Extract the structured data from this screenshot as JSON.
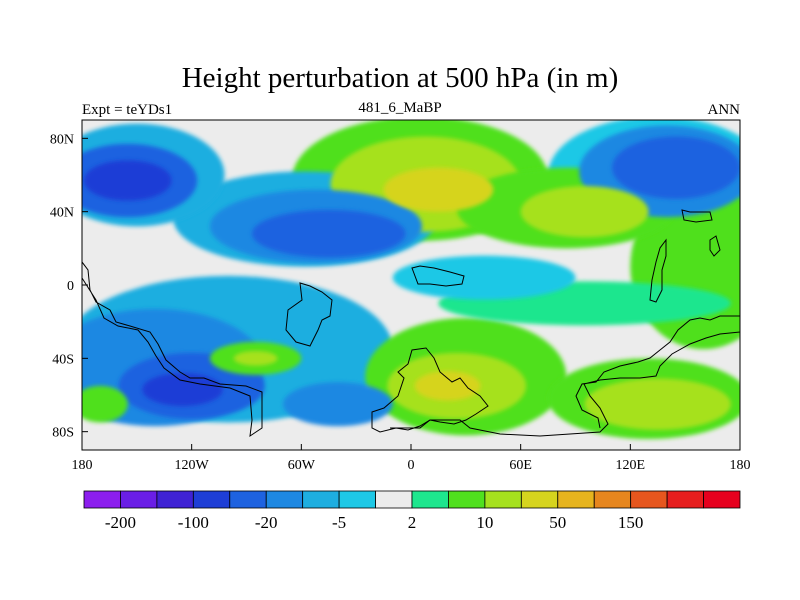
{
  "chart_data": {
    "type": "heatmap",
    "title": "Height perturbation at 500 hPa (in m)",
    "left_string": "Expt = teYDs1",
    "center_string": "481_6_MaBP",
    "right_string": "ANN",
    "xlim": [
      -180,
      180
    ],
    "ylim": [
      -90,
      90
    ],
    "x_ticks": [
      {
        "value": -180,
        "label": "180"
      },
      {
        "value": -120,
        "label": "120W"
      },
      {
        "value": -60,
        "label": "60W"
      },
      {
        "value": 0,
        "label": "0"
      },
      {
        "value": 60,
        "label": "60E"
      },
      {
        "value": 120,
        "label": "120E"
      },
      {
        "value": 180,
        "label": "180"
      }
    ],
    "y_ticks": [
      {
        "value": 80,
        "label": "80N"
      },
      {
        "value": 40,
        "label": "40N"
      },
      {
        "value": 0,
        "label": "0"
      },
      {
        "value": -40,
        "label": "40S"
      },
      {
        "value": -80,
        "label": "80S"
      }
    ],
    "colorbar": {
      "colors": [
        "#8c1eee",
        "#6a1ee6",
        "#3f22d4",
        "#1e3ed6",
        "#1e62e0",
        "#1e88e2",
        "#1eaee0",
        "#1ec8e6",
        "#ececec",
        "#1ee68e",
        "#50e01e",
        "#a6e11e",
        "#d6d41e",
        "#e6b41e",
        "#e6861e",
        "#e6561e",
        "#e61e1e",
        "#e6001e"
      ],
      "labels": [
        {
          "boundary": 1,
          "text": "-200"
        },
        {
          "boundary": 3,
          "text": "-100"
        },
        {
          "boundary": 5,
          "text": "-20"
        },
        {
          "boundary": 7,
          "text": "-5"
        },
        {
          "boundary": 9,
          "text": "2"
        },
        {
          "boundary": 11,
          "text": "10"
        },
        {
          "boundary": 13,
          "text": "50"
        },
        {
          "boundary": 15,
          "text": "150"
        }
      ]
    },
    "regions": [
      {
        "level": 4,
        "cx": -155,
        "cy": 57,
        "rx": 38,
        "ry": 20
      },
      {
        "level": 3,
        "cx": -155,
        "cy": 57,
        "rx": 24,
        "ry": 11
      },
      {
        "level": 6,
        "cx": -150,
        "cy": 60,
        "rx": 48,
        "ry": 28
      },
      {
        "level": 4,
        "cx": -45,
        "cy": 28,
        "rx": 42,
        "ry": 13
      },
      {
        "level": 5,
        "cx": -52,
        "cy": 32,
        "rx": 58,
        "ry": 20
      },
      {
        "level": 6,
        "cx": -58,
        "cy": 36,
        "rx": 72,
        "ry": 26
      },
      {
        "level": 12,
        "cx": 15,
        "cy": 52,
        "rx": 30,
        "ry": 12
      },
      {
        "level": 11,
        "cx": 8,
        "cy": 55,
        "rx": 52,
        "ry": 26
      },
      {
        "level": 10,
        "cx": 5,
        "cy": 58,
        "rx": 70,
        "ry": 34
      },
      {
        "level": 10,
        "cx": 85,
        "cy": 42,
        "rx": 60,
        "ry": 22
      },
      {
        "level": 11,
        "cx": 95,
        "cy": 40,
        "rx": 35,
        "ry": 14
      },
      {
        "level": 4,
        "cx": 145,
        "cy": 64,
        "rx": 35,
        "ry": 17
      },
      {
        "level": 5,
        "cx": 140,
        "cy": 62,
        "rx": 48,
        "ry": 25
      },
      {
        "level": 7,
        "cx": 135,
        "cy": 60,
        "rx": 60,
        "ry": 32
      },
      {
        "level": 10,
        "cx": 160,
        "cy": 10,
        "rx": 40,
        "ry": 45
      },
      {
        "level": 7,
        "cx": 40,
        "cy": 4,
        "rx": 50,
        "ry": 12
      },
      {
        "level": 9,
        "cx": 95,
        "cy": -10,
        "rx": 80,
        "ry": 12
      },
      {
        "level": 5,
        "cx": -140,
        "cy": -45,
        "rx": 60,
        "ry": 32
      },
      {
        "level": 3,
        "cx": -125,
        "cy": -57,
        "rx": 22,
        "ry": 9
      },
      {
        "level": 4,
        "cx": -120,
        "cy": -55,
        "rx": 40,
        "ry": 18
      },
      {
        "level": 6,
        "cx": -100,
        "cy": -35,
        "rx": 90,
        "ry": 40
      },
      {
        "level": 10,
        "cx": -85,
        "cy": -40,
        "rx": 25,
        "ry": 9
      },
      {
        "level": 11,
        "cx": -85,
        "cy": -40,
        "rx": 12,
        "ry": 4
      },
      {
        "level": 5,
        "cx": -40,
        "cy": -65,
        "rx": 30,
        "ry": 12
      },
      {
        "level": 12,
        "cx": 20,
        "cy": -55,
        "rx": 18,
        "ry": 8
      },
      {
        "level": 11,
        "cx": 25,
        "cy": -55,
        "rx": 38,
        "ry": 18
      },
      {
        "level": 10,
        "cx": 30,
        "cy": -50,
        "rx": 55,
        "ry": 32
      },
      {
        "level": 11,
        "cx": 135,
        "cy": -65,
        "rx": 40,
        "ry": 14
      },
      {
        "level": 10,
        "cx": 130,
        "cy": -62,
        "rx": 55,
        "ry": 22
      },
      {
        "level": 10,
        "cx": -170,
        "cy": -65,
        "rx": 15,
        "ry": 10
      }
    ]
  }
}
